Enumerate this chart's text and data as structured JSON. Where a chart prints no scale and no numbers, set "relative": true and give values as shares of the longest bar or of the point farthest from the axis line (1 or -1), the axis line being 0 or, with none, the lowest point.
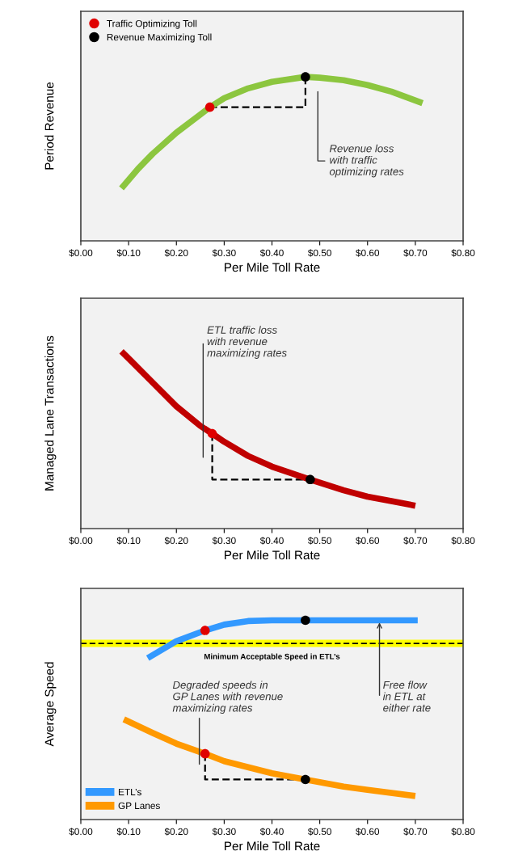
{
  "chart_data": [
    {
      "type": "line",
      "relative": true,
      "ylabel": "Period Revenue",
      "xlabel": "Per Mile Toll Rate",
      "xlim": [
        0,
        0.8
      ],
      "xticks": [
        {
          "value": 0,
          "label": "$0.00"
        },
        {
          "value": 0.1,
          "label": "$0.10"
        },
        {
          "value": 0.2,
          "label": "$0.20"
        },
        {
          "value": 0.3,
          "label": "$0.30"
        },
        {
          "value": 0.4,
          "label": "$0.40"
        },
        {
          "value": 0.5,
          "label": "$0.50"
        },
        {
          "value": 0.6,
          "label": "$0.60"
        },
        {
          "value": 0.7,
          "label": "$0.70"
        },
        {
          "value": 0.8,
          "label": "$0.80"
        }
      ],
      "tick_labels": "x",
      "grid": false,
      "legend": "top left",
      "series": [
        {
          "type": "line",
          "color": "#8cc63f",
          "marker": "none",
          "x": [
            0.085,
            0.12,
            0.15,
            0.2,
            0.25,
            0.27,
            0.3,
            0.35,
            0.4,
            0.47,
            0.5,
            0.55,
            0.6,
            0.65,
            0.715
          ],
          "values": [
            0.32,
            0.44,
            0.53,
            0.66,
            0.77,
            0.815,
            0.87,
            0.93,
            0.97,
            1.0,
            0.995,
            0.98,
            0.95,
            0.91,
            0.84
          ]
        },
        {
          "type": "line",
          "color": "#000000",
          "marker": "none",
          "line_style": "dashed",
          "x": [
            0.27,
            0.47,
            0.47
          ],
          "values": [
            0.815,
            0.815,
            1.0
          ]
        },
        {
          "type": "scatter",
          "name": "Traffic Optimizing Toll",
          "color": "#e00000",
          "marker": "circle",
          "x": [
            0.27
          ],
          "values": [
            0.815
          ]
        },
        {
          "type": "scatter",
          "name": "Revenue Maximizing Toll",
          "color": "#000000",
          "marker": "circle",
          "x": [
            0.47
          ],
          "values": [
            1.0
          ]
        }
      ],
      "annotations": [
        "Revenue loss\nwith traffic\noptimizing rates"
      ]
    },
    {
      "type": "line",
      "relative": true,
      "ylabel": "Managed Lane Transactions",
      "xlabel": "Per Mile Toll Rate",
      "xlim": [
        0,
        0.8
      ],
      "xticks": [
        {
          "value": 0,
          "label": "$0.00"
        },
        {
          "value": 0.1,
          "label": "$0.10"
        },
        {
          "value": 0.2,
          "label": "$0.20"
        },
        {
          "value": 0.3,
          "label": "$0.30"
        },
        {
          "value": 0.4,
          "label": "$0.40"
        },
        {
          "value": 0.5,
          "label": "$0.50"
        },
        {
          "value": 0.6,
          "label": "$0.60"
        },
        {
          "value": 0.7,
          "label": "$0.70"
        },
        {
          "value": 0.8,
          "label": "$0.80"
        }
      ],
      "tick_labels": "x",
      "grid": false,
      "series": [
        {
          "type": "line",
          "color": "#c00000",
          "marker": "none",
          "x": [
            0.085,
            0.1,
            0.15,
            0.2,
            0.25,
            0.275,
            0.3,
            0.35,
            0.4,
            0.48,
            0.55,
            0.6,
            0.65,
            0.7
          ],
          "values": [
            1.0,
            0.96,
            0.825,
            0.69,
            0.58,
            0.536,
            0.49,
            0.41,
            0.35,
            0.277,
            0.216,
            0.18,
            0.155,
            0.129
          ]
        },
        {
          "type": "line",
          "color": "#000000",
          "marker": "none",
          "line_style": "dashed",
          "x": [
            0.275,
            0.275,
            0.48
          ],
          "values": [
            0.536,
            0.277,
            0.277
          ]
        },
        {
          "type": "scatter",
          "color": "#e00000",
          "marker": "circle",
          "x": [
            0.275
          ],
          "values": [
            0.536
          ]
        },
        {
          "type": "scatter",
          "color": "#000000",
          "marker": "circle",
          "x": [
            0.48
          ],
          "values": [
            0.277
          ]
        }
      ],
      "annotations": [
        "ETL traffic loss\nwith revenue\nmaximizing rates"
      ]
    },
    {
      "type": "line",
      "relative": true,
      "ylabel": "Average Speed",
      "xlabel": "Per Mile Toll Rate",
      "xlim": [
        0,
        0.8
      ],
      "xticks": [
        {
          "value": 0,
          "label": "$0.00"
        },
        {
          "value": 0.1,
          "label": "$0.10"
        },
        {
          "value": 0.2,
          "label": "$0.20"
        },
        {
          "value": 0.3,
          "label": "$0.30"
        },
        {
          "value": 0.4,
          "label": "$0.40"
        },
        {
          "value": 0.5,
          "label": "$0.50"
        },
        {
          "value": 0.6,
          "label": "$0.60"
        },
        {
          "value": 0.7,
          "label": "$0.70"
        },
        {
          "value": 0.8,
          "label": "$0.80"
        }
      ],
      "tick_labels": "x",
      "grid": false,
      "legend": "bottom left",
      "ref_lines": [
        {
          "axis": "y",
          "value": 0.884,
          "label": "Minimum Acceptable Speed in ETL’s",
          "color": "#000000",
          "line_style": "dashed"
        }
      ],
      "bands": [
        {
          "axis": "y",
          "from": 0.866,
          "to": 0.902,
          "color": "#ffff00"
        }
      ],
      "series": [
        {
          "type": "line",
          "name": "ETL’s",
          "color": "#3399ff",
          "marker": "none",
          "x": [
            0.14,
            0.2,
            0.26,
            0.3,
            0.35,
            0.4,
            0.47,
            0.6,
            0.705
          ],
          "values": [
            0.81,
            0.895,
            0.949,
            0.978,
            0.996,
            1.0,
            1.0,
            1.0,
            1.0
          ]
        },
        {
          "type": "line",
          "name": "GP Lanes",
          "color": "#ff9900",
          "marker": "none",
          "x": [
            0.09,
            0.15,
            0.2,
            0.26,
            0.3,
            0.4,
            0.47,
            0.55,
            0.6,
            0.7
          ],
          "values": [
            0.503,
            0.435,
            0.381,
            0.33,
            0.293,
            0.232,
            0.201,
            0.165,
            0.149,
            0.118
          ]
        },
        {
          "type": "line",
          "color": "#000000",
          "marker": "none",
          "line_style": "dashed",
          "x": [
            0.26,
            0.26,
            0.47
          ],
          "values": [
            0.33,
            0.201,
            0.201
          ]
        },
        {
          "type": "scatter",
          "color": "#e00000",
          "marker": "circle",
          "x": [
            0.26,
            0.26
          ],
          "values": [
            0.949,
            0.33
          ]
        },
        {
          "type": "scatter",
          "color": "#000000",
          "marker": "circle",
          "x": [
            0.47,
            0.47
          ],
          "values": [
            1.0,
            0.201
          ]
        }
      ],
      "annotations": [
        {
          "text": "Free flow\nin ETL at\neither rate",
          "x": 0.625,
          "y": 1.0
        },
        "Degraded speeds in\nGP Lanes with revenue\nmaximizing rates"
      ]
    }
  ]
}
